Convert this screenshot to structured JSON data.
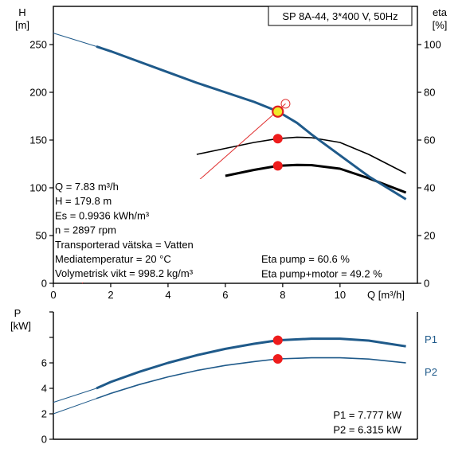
{
  "chart_data": [
    {
      "type": "line",
      "title": "SP 8A-44, 3*400 V, 50Hz",
      "xlabel": "Q [m³/h]",
      "ylabel": "H\n[m]",
      "ylabel_right": "eta\n[%]",
      "xlim": [
        0,
        12.7
      ],
      "ylim": [
        0,
        290
      ],
      "ylim_right": [
        0,
        116
      ],
      "x_ticks": [
        "0",
        "2",
        "4",
        "6",
        "8",
        "10"
      ],
      "y_ticks": [
        "0",
        "50",
        "100",
        "150",
        "200",
        "250"
      ],
      "y_ticks_right": [
        "0",
        "20",
        "40",
        "60",
        "80",
        "100"
      ],
      "series": [
        {
          "role": "head",
          "axis": "left",
          "color": "#1f5a8a",
          "range": [
            1.5,
            12.3
          ],
          "extension": [
            0,
            1.5
          ],
          "x": [
            0,
            1.5,
            2,
            3,
            4,
            5,
            6,
            7,
            7.83,
            8.5,
            9,
            10,
            11,
            12.3
          ],
          "y": [
            262,
            248,
            243,
            232,
            221,
            210,
            200,
            190,
            180,
            168,
            156,
            134,
            112,
            88
          ]
        },
        {
          "role": "eta-pump",
          "axis": "right",
          "color": "#000000",
          "x": [
            5,
            6,
            7,
            7.83,
            8.5,
            9,
            10,
            11,
            12.3
          ],
          "y": [
            54,
            56.5,
            59,
            60.6,
            61.2,
            61,
            59,
            54,
            46
          ]
        },
        {
          "role": "eta-pump-motor",
          "axis": "right",
          "color": "#000000",
          "x": [
            6,
            7,
            7.83,
            8.5,
            9,
            10,
            11,
            12.3
          ],
          "y": [
            45,
            47.5,
            49.2,
            49.6,
            49.5,
            48,
            44,
            38
          ]
        }
      ],
      "operating_point": {
        "x": 7.83,
        "head": 179.8,
        "eta_pump": 60.6,
        "eta_pump_motor": 49.2
      },
      "info_lines": [
        "Q = 7.83 m³/h",
        "H = 179.8 m",
        "Es = 0.9936 kWh/m³",
        "n = 2897 rpm",
        "Transporterad vätska = Vatten",
        "Mediatemperatur = 20 °C",
        "Volymetrisk vikt = 998.2 kg/m³"
      ],
      "eta_labels": [
        "Eta pump = 60.6 %",
        "Eta pump+motor = 49.2 %"
      ]
    },
    {
      "type": "line",
      "ylabel": "P\n[kW]",
      "xlim": [
        0,
        12.7
      ],
      "ylim": [
        0,
        10
      ],
      "y_ticks": [
        "0",
        "2",
        "4",
        "6"
      ],
      "series": [
        {
          "name": "P1",
          "color": "#1f5a8a",
          "range": [
            1.5,
            12.3
          ],
          "extension": [
            0,
            1.5
          ],
          "x": [
            0,
            1.5,
            2,
            3,
            4,
            5,
            6,
            7,
            7.83,
            9,
            10,
            11,
            12.3
          ],
          "y": [
            2.9,
            4.0,
            4.5,
            5.3,
            6.0,
            6.6,
            7.1,
            7.5,
            7.777,
            7.9,
            7.9,
            7.75,
            7.3
          ]
        },
        {
          "name": "P2",
          "color": "#1f5a8a",
          "range": [
            1.5,
            12.3
          ],
          "extension": [
            0,
            1.5
          ],
          "x": [
            0,
            1.5,
            2,
            3,
            4,
            5,
            6,
            7,
            7.83,
            9,
            10,
            11,
            12.3
          ],
          "y": [
            2.0,
            3.2,
            3.6,
            4.3,
            4.9,
            5.4,
            5.8,
            6.1,
            6.315,
            6.4,
            6.4,
            6.3,
            6.0
          ]
        }
      ],
      "operating_point": {
        "x": 7.83,
        "p1": 7.777,
        "p2": 6.315
      },
      "value_labels": [
        "P1 = 7.777 kW",
        "P2 = 6.315 kW"
      ]
    }
  ]
}
